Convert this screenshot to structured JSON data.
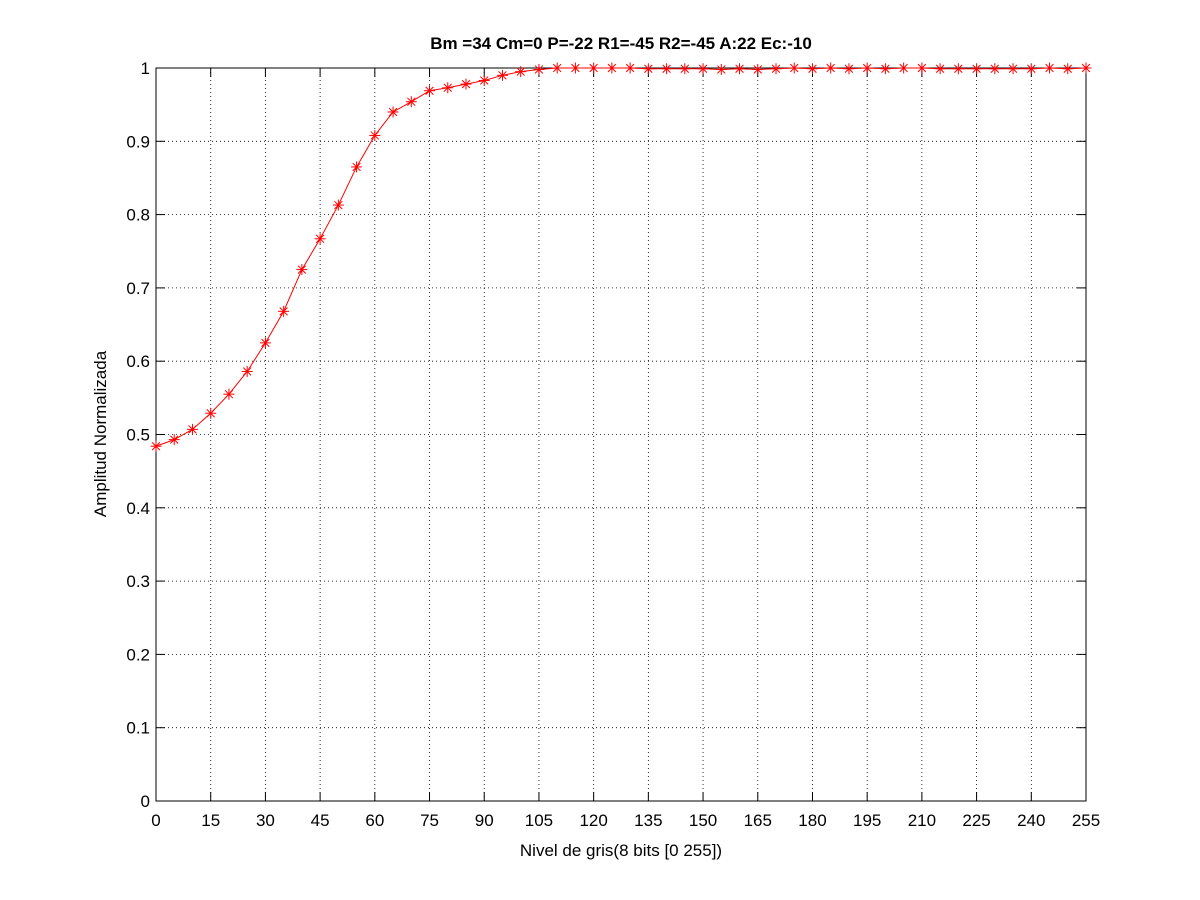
{
  "chart_data": {
    "type": "line",
    "title": "Bm =34  Cm=0  P=-22  R1=-45  R2=-45  A:22  Ec:-10",
    "xlabel": "Nivel de gris(8 bits [0 255])",
    "ylabel": "Amplitud Normalizada",
    "xlim": [
      0,
      255
    ],
    "ylim": [
      0,
      1
    ],
    "x_ticks": [
      0,
      15,
      30,
      45,
      60,
      75,
      90,
      105,
      120,
      135,
      150,
      165,
      180,
      195,
      210,
      225,
      240,
      255
    ],
    "y_ticks": [
      0,
      0.1,
      0.2,
      0.3,
      0.4,
      0.5,
      0.6,
      0.7,
      0.8,
      0.9,
      1
    ],
    "x_tick_labels": [
      "0",
      "15",
      "30",
      "45",
      "60",
      "75",
      "90",
      "105",
      "120",
      "135",
      "150",
      "165",
      "180",
      "195",
      "210",
      "225",
      "240",
      "255"
    ],
    "y_tick_labels": [
      "0",
      "0.1",
      "0.2",
      "0.3",
      "0.4",
      "0.5",
      "0.6",
      "0.7",
      "0.8",
      "0.9",
      "1"
    ],
    "grid": true,
    "marker": "asterisk",
    "color": "#ff0000",
    "series": [
      {
        "x": [
          0,
          5,
          10,
          15,
          20,
          25,
          30,
          35,
          40,
          45,
          50,
          55,
          60,
          65,
          70,
          75,
          80,
          85,
          90,
          95,
          100,
          105,
          110,
          115,
          120,
          125,
          130,
          135,
          140,
          145,
          150,
          155,
          160,
          165,
          170,
          175,
          180,
          185,
          190,
          195,
          200,
          205,
          210,
          215,
          220,
          225,
          230,
          235,
          240,
          245,
          250,
          255
        ],
        "values": [
          0.484,
          0.493,
          0.507,
          0.529,
          0.555,
          0.586,
          0.625,
          0.668,
          0.725,
          0.767,
          0.813,
          0.865,
          0.908,
          0.94,
          0.954,
          0.969,
          0.973,
          0.978,
          0.983,
          0.99,
          0.995,
          0.998,
          1.0,
          1.0,
          1.0,
          1.0,
          1.0,
          0.999,
          0.999,
          0.999,
          0.999,
          0.998,
          0.999,
          0.998,
          0.999,
          1.0,
          0.999,
          1.0,
          0.999,
          1.0,
          0.999,
          1.0,
          1.0,
          0.999,
          0.999,
          0.999,
          0.999,
          0.999,
          0.999,
          1.0,
          0.999,
          1.0
        ]
      }
    ]
  }
}
